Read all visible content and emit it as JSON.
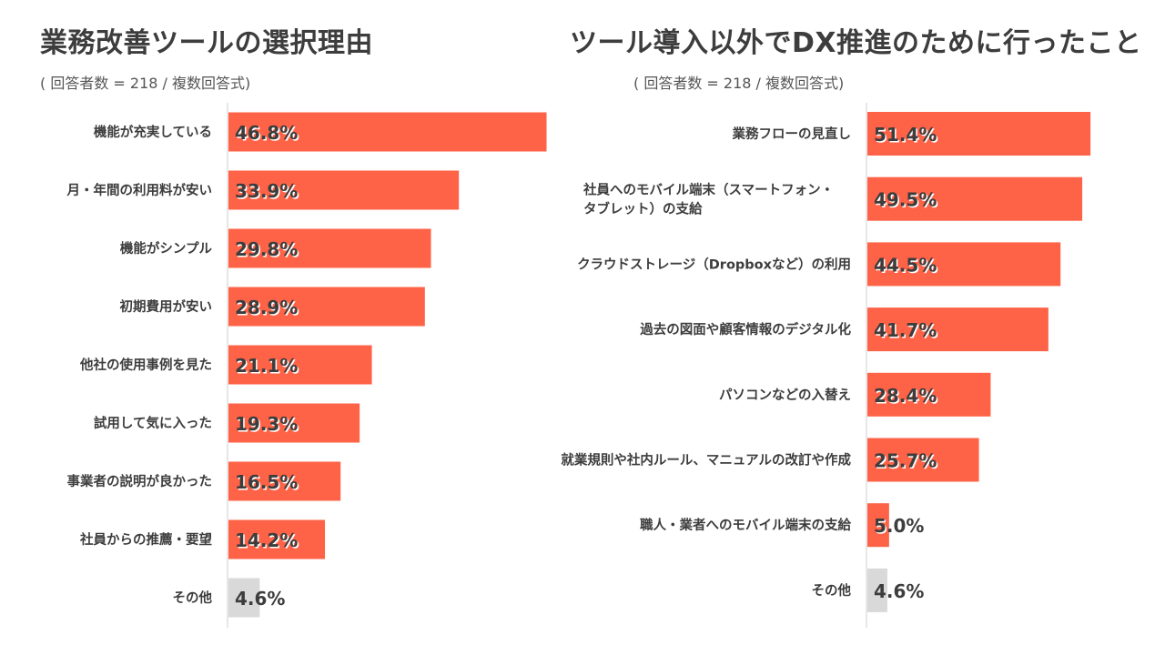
{
  "chart_data": [
    {
      "type": "bar",
      "orientation": "horizontal",
      "title": "業務改善ツールの選択理由",
      "subtitle": "( 回答者数 = 218 / 複数回答式)",
      "categories": [
        "機能が充実している",
        "月・年間の利用料が安い",
        "機能がシンプル",
        "初期費用が安い",
        "他社の使用事例を見た",
        "試用して気に入った",
        "事業者の説明が良かった",
        "社員からの推薦・要望",
        "その他"
      ],
      "values": [
        46.8,
        33.9,
        29.8,
        28.9,
        21.1,
        19.3,
        16.5,
        14.2,
        4.6
      ],
      "value_labels": [
        "46.8%",
        "33.9%",
        "29.8%",
        "28.9%",
        "21.1%",
        "19.3%",
        "16.5%",
        "14.2%",
        "4.6%"
      ],
      "xlim": [
        0,
        47
      ],
      "colors": {
        "bar": "#ff6347",
        "other": "#d9d9d9"
      }
    },
    {
      "type": "bar",
      "orientation": "horizontal",
      "title": "ツール導入以外でDX推進のために行ったこと",
      "subtitle": "( 回答者数 = 218 / 複数回答式)",
      "categories": [
        [
          "業務フローの見直し"
        ],
        [
          "社員へのモバイル端末（スマートフォン・",
          "タブレット）の支給"
        ],
        [
          "クラウドストレージ（Dropboxなど）の利用"
        ],
        [
          "過去の図面や顧客情報のデジタル化"
        ],
        [
          "パソコンなどの入替え"
        ],
        [
          "就業規則や社内ルール、マニュアルの改訂や作成"
        ],
        [
          "職人・業者へのモバイル端末の支給"
        ],
        [
          "その他"
        ]
      ],
      "values": [
        51.4,
        49.5,
        44.5,
        41.7,
        28.4,
        25.7,
        5.0,
        4.6
      ],
      "value_labels": [
        "51.4%",
        "49.5%",
        "44.5%",
        "41.7%",
        "28.4%",
        "25.7%",
        "5.0%",
        "4.6%"
      ],
      "xlim": [
        0,
        52
      ],
      "colors": {
        "bar": "#ff6347",
        "other": "#d9d9d9"
      }
    }
  ]
}
